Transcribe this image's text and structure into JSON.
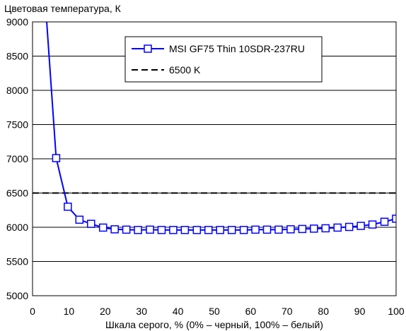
{
  "chart_data": {
    "type": "line",
    "title": "",
    "ylabel": "Цветовая температура, К",
    "xlabel": "Шкала серого, % (0% – черный, 100% – белый)",
    "xlim": [
      0,
      100
    ],
    "ylim": [
      5000,
      9000
    ],
    "xticks": [
      0,
      10,
      20,
      30,
      40,
      50,
      60,
      70,
      80,
      90,
      100
    ],
    "yticks": [
      5000,
      5500,
      6000,
      6500,
      7000,
      7500,
      8000,
      8500,
      9000
    ],
    "xtick_labels": [
      "0",
      "10",
      "20",
      "30",
      "40",
      "50",
      "60",
      "70",
      "80",
      "90",
      "100"
    ],
    "ytick_labels": [
      "5000",
      "5500",
      "6000",
      "6500",
      "7000",
      "7500",
      "8000",
      "8500",
      "9000"
    ],
    "grid": "horizontal",
    "legend_position": "top-center",
    "series": [
      {
        "name": "MSI GF75 Thin 10SDR-237RU",
        "color": "#0000ff",
        "marker": "open-square",
        "x": [
          3.9,
          6.5,
          9.7,
          12.9,
          16.1,
          19.4,
          22.6,
          25.8,
          29.0,
          32.3,
          35.5,
          38.7,
          41.9,
          45.2,
          48.4,
          51.6,
          54.8,
          58.1,
          61.3,
          64.5,
          67.7,
          71.0,
          74.2,
          77.4,
          80.6,
          83.9,
          87.1,
          90.3,
          93.5,
          96.8,
          100
        ],
        "y": [
          9000,
          7010,
          6300,
          6110,
          6050,
          5995,
          5970,
          5965,
          5960,
          5965,
          5960,
          5960,
          5960,
          5960,
          5960,
          5960,
          5960,
          5960,
          5965,
          5965,
          5965,
          5970,
          5975,
          5980,
          5985,
          5995,
          6005,
          6020,
          6040,
          6080,
          6125
        ],
        "first_point_clipped": true
      },
      {
        "name": "6500 K",
        "color": "#000000",
        "style": "dashed",
        "x": [
          0,
          100
        ],
        "y": [
          6500,
          6500
        ]
      }
    ]
  }
}
